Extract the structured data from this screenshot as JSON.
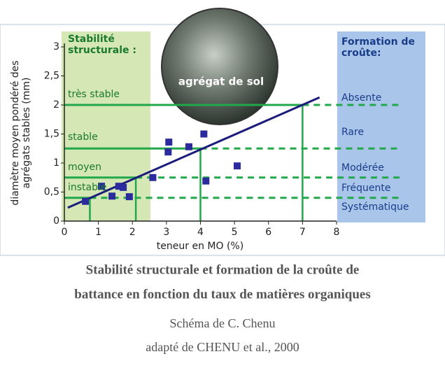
{
  "chart_data": {
    "type": "scatter",
    "x": [
      0.62,
      1.09,
      1.4,
      1.6,
      1.73,
      1.91,
      2.6,
      3.07,
      3.05,
      3.66,
      4.1,
      4.16,
      5.08
    ],
    "y": [
      0.34,
      0.6,
      0.43,
      0.6,
      0.58,
      0.42,
      0.75,
      1.36,
      1.19,
      1.28,
      1.5,
      0.69,
      0.95
    ],
    "color": "#2b2b9e",
    "trend": {
      "x": [
        0.1,
        7.5
      ],
      "y": [
        0.23,
        2.13
      ],
      "color": "#1c1c7c"
    },
    "reference_lines": [
      {
        "x": 7,
        "y": 2
      },
      {
        "x": 4,
        "y": 1.25
      },
      {
        "x": 2.1,
        "y": 0.75
      },
      {
        "x": 0.75,
        "y": 0.4
      }
    ],
    "xlim": [
      0,
      8
    ],
    "ylim": [
      0,
      3
    ],
    "xticks": [
      0,
      1,
      2,
      3,
      4,
      5,
      6,
      7,
      8
    ],
    "yticks": [
      0,
      {
        "value": 0.5,
        "label": "0,5"
      },
      1,
      {
        "value": 1.5,
        "label": "1,5"
      },
      2,
      {
        "value": 2.5,
        "label": "2,5"
      },
      3
    ],
    "x_label": "teneur en MO (%)",
    "y_label": [
      "diamètre moyen pondéré des",
      "agrégats stables (mm)"
    ],
    "stability_title": [
      "Stabilité",
      "structurale :"
    ],
    "stability_classes": [
      "très stable",
      "stable",
      "moyen",
      "instable"
    ],
    "crust_title": [
      "Formation de",
      "croûte:"
    ],
    "crust_classes": [
      "Absente",
      "Rare",
      "Modérée",
      "Fréquente",
      "Systématique"
    ],
    "photo_label": "agrégat de sol"
  },
  "caption": {
    "title_lines": [
      "Stabilité structurale et formation de la croûte de",
      "battance en fonction du taux de matières organiques"
    ],
    "credit": "Schéma de C. Chenu",
    "source": "adapté de CHENU et al., 2000"
  }
}
